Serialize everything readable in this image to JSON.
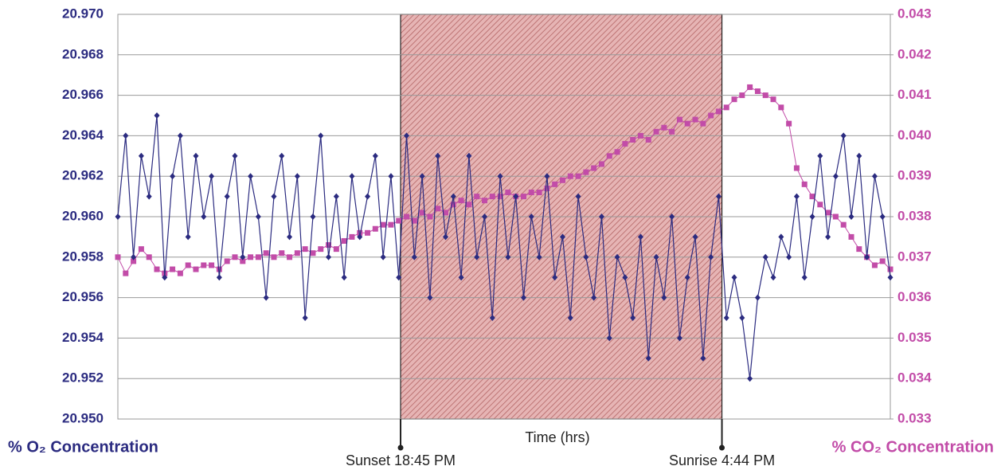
{
  "chart_data": {
    "type": "line",
    "xlabel": "Time (hrs)",
    "ylabel": "% O₂ Concentration",
    "y2label": "% CO₂ Concentration",
    "annotations": [
      "Sunset 18:45 PM",
      "Sunrise 4:44 PM"
    ],
    "ylim": [
      20.95,
      20.97
    ],
    "yticks": [
      {
        "value": 20.95,
        "label": "20.950"
      },
      20.952,
      20.954,
      20.956,
      20.958,
      {
        "value": 20.96,
        "label": "20.960"
      },
      20.962,
      20.964,
      20.966,
      20.968,
      {
        "value": 20.97,
        "label": "20.970"
      }
    ],
    "y2lim": [
      0.033,
      0.043
    ],
    "y2ticks": [
      0.033,
      0.034,
      0.035,
      0.036,
      0.037,
      0.038,
      0.039,
      {
        "value": 0.04,
        "label": "0.040"
      },
      0.041,
      0.042,
      0.043
    ],
    "grid": true,
    "series": [
      {
        "name": "% O₂ Concentration",
        "color": "#2b2b80",
        "marker": "diamond",
        "values": [
          20.96,
          20.964,
          20.958,
          20.963,
          20.961,
          20.965,
          20.957,
          20.962,
          20.964,
          20.959,
          20.963,
          20.96,
          20.962,
          20.957,
          20.961,
          20.963,
          20.958,
          20.962,
          20.96,
          20.956,
          20.961,
          20.963,
          20.959,
          20.962,
          20.955,
          20.96,
          20.964,
          20.958,
          20.961,
          20.957,
          20.962,
          20.959,
          20.961,
          20.963,
          20.958,
          20.962,
          20.957,
          20.964,
          20.958,
          20.962,
          20.956,
          20.963,
          20.959,
          20.961,
          20.957,
          20.963,
          20.958,
          20.96,
          20.955,
          20.962,
          20.958,
          20.961,
          20.956,
          20.96,
          20.958,
          20.962,
          20.957,
          20.959,
          20.955,
          20.961,
          20.958,
          20.956,
          20.96,
          20.954,
          20.958,
          20.957,
          20.955,
          20.959,
          20.953,
          20.958,
          20.956,
          20.96,
          20.954,
          20.957,
          20.959,
          20.953,
          20.958,
          20.961,
          20.955,
          20.957,
          20.955,
          20.952,
          20.956,
          20.958,
          20.957,
          20.959,
          20.958,
          20.961,
          20.957,
          20.96,
          20.963,
          20.959,
          20.962,
          20.964,
          20.96,
          20.963,
          20.958,
          20.962,
          20.96,
          20.957
        ]
      },
      {
        "name": "% CO₂ Concentration",
        "color": "#c24ca8",
        "marker": "square",
        "axis": "y2",
        "values": [
          0.037,
          0.0366,
          0.0369,
          0.0372,
          0.037,
          0.0367,
          0.0366,
          0.0367,
          0.0366,
          0.0368,
          0.0367,
          0.0368,
          0.0368,
          0.0367,
          0.0369,
          0.037,
          0.0369,
          0.037,
          0.037,
          0.0371,
          0.037,
          0.0371,
          0.037,
          0.0371,
          0.0372,
          0.0371,
          0.0372,
          0.0373,
          0.0372,
          0.0374,
          0.0375,
          0.0376,
          0.0376,
          0.0377,
          0.0378,
          0.0378,
          0.0379,
          0.038,
          0.0379,
          0.0381,
          0.038,
          0.0382,
          0.0381,
          0.0383,
          0.0384,
          0.0383,
          0.0385,
          0.0384,
          0.0385,
          0.0385,
          0.0386,
          0.0385,
          0.0385,
          0.0386,
          0.0386,
          0.0387,
          0.0388,
          0.0389,
          0.039,
          0.039,
          0.0391,
          0.0392,
          0.0393,
          0.0395,
          0.0396,
          0.0398,
          0.0399,
          0.04,
          0.0399,
          0.0401,
          0.0402,
          0.0401,
          0.0404,
          0.0403,
          0.0404,
          0.0403,
          0.0405,
          0.0406,
          0.0407,
          0.0409,
          0.041,
          0.0412,
          0.0411,
          0.041,
          0.0409,
          0.0407,
          0.0403,
          0.0392,
          0.0388,
          0.0385,
          0.0383,
          0.0381,
          0.038,
          0.0378,
          0.0375,
          0.0372,
          0.037,
          0.0368,
          0.0369,
          0.0367
        ]
      }
    ]
  }
}
